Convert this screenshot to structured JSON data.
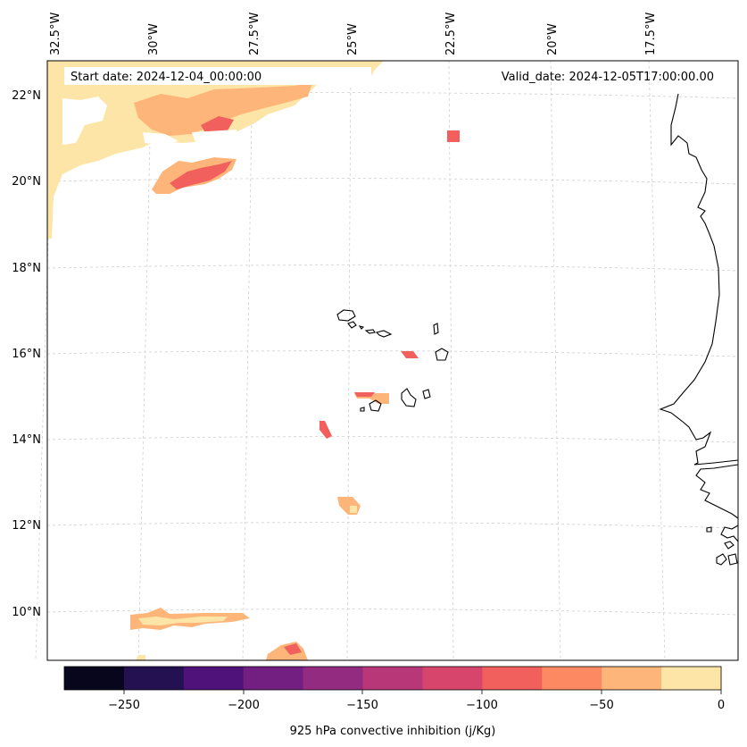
{
  "header": {
    "start_date": "Start date: 2024-12-04_00:00:00",
    "valid_date": "Valid_date: 2024-12-05T17:00:00.00"
  },
  "map": {
    "lon_labels": [
      "32.5°W",
      "30°W",
      "27.5°W",
      "25°W",
      "22.5°W",
      "20°W",
      "17.5°W"
    ],
    "lat_labels": [
      "22°N",
      "20°N",
      "18°N",
      "16°N",
      "14°N",
      "12°N",
      "10°N"
    ],
    "lon_range": [
      -32.8,
      -16.1
    ],
    "lat_range": [
      8.9,
      22.8
    ],
    "gridlines": true,
    "coastline_color": "#000000"
  },
  "colorbar": {
    "label": "925 hPa convective inhibition (j/Kg)",
    "ticks": [
      "−250",
      "−200",
      "−150",
      "−100",
      "−50",
      "0"
    ],
    "levels": [
      -275,
      -250,
      -225,
      -200,
      -175,
      -150,
      -125,
      -100,
      -75,
      -50,
      -25,
      0
    ],
    "colors": [
      "#07061c",
      "#231151",
      "#4f127b",
      "#721f81",
      "#932b80",
      "#b73779",
      "#d8456c",
      "#f1605d",
      "#fc8961",
      "#feb57a",
      "#fde5a7"
    ]
  }
}
